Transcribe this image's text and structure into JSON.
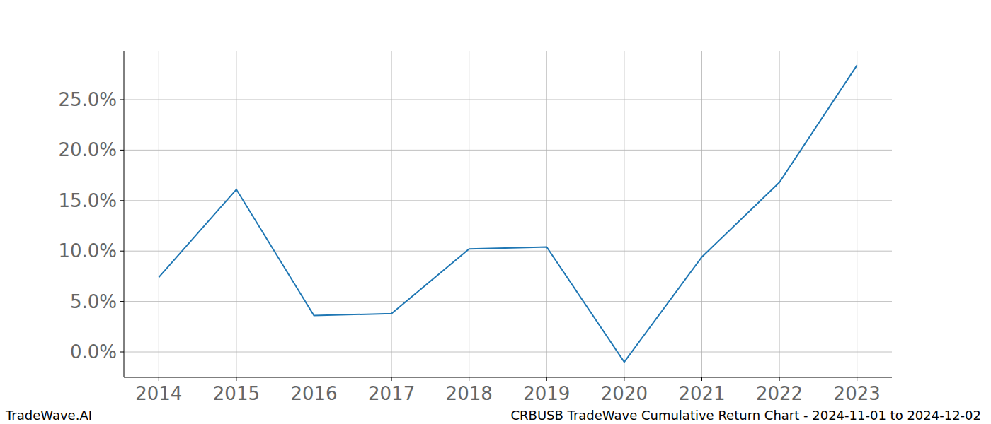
{
  "chart_data": {
    "type": "line",
    "title": "CRBUSB TradeWave Cumulative Return Chart - 2024-11-01 to 2024-12-02",
    "watermark": "TradeWave.AI",
    "x": [
      2014,
      2015,
      2016,
      2017,
      2018,
      2019,
      2020,
      2021,
      2022,
      2023
    ],
    "series": [
      {
        "name": "CRBUSB",
        "color": "#1f77b4",
        "values": [
          7.4,
          16.1,
          3.6,
          3.8,
          10.2,
          10.4,
          -1.0,
          9.4,
          16.8,
          28.4
        ]
      }
    ],
    "xlim": [
      2013.55,
      2023.45
    ],
    "xticks": [
      2014,
      2015,
      2016,
      2017,
      2018,
      2019,
      2020,
      2021,
      2022,
      2023
    ],
    "ylim": [
      -2.52,
      29.83
    ],
    "yticks": [
      {
        "value": 0,
        "label": "0.0%"
      },
      {
        "value": 5,
        "label": "5.0%"
      },
      {
        "value": 10,
        "label": "10.0%"
      },
      {
        "value": 15,
        "label": "15.0%"
      },
      {
        "value": 20,
        "label": "20.0%"
      },
      {
        "value": 25,
        "label": "25.0%"
      }
    ],
    "grid": true
  }
}
